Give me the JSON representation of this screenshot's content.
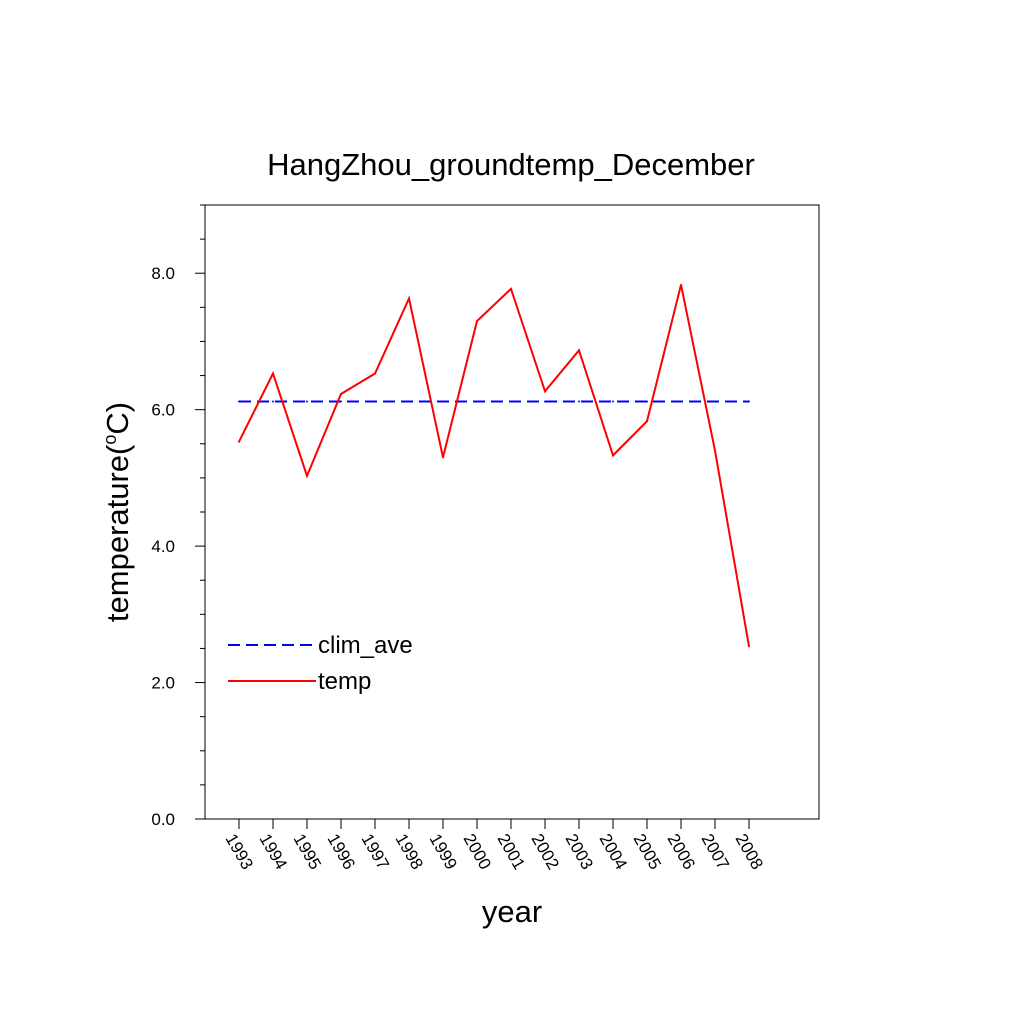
{
  "chart_data": {
    "type": "line",
    "title": "HangZhou_groundtemp_December",
    "xlabel": "year",
    "ylabel": "temperature(",
    "ylabel_sup": "o",
    "ylabel_tail": "C)",
    "x": [
      "1993",
      "1994",
      "1995",
      "1996",
      "1997",
      "1998",
      "1999",
      "2000",
      "2001",
      "2002",
      "2003",
      "2004",
      "2005",
      "2006",
      "2007",
      "2008"
    ],
    "ylim": [
      0,
      9
    ],
    "yticks": [
      "0.0",
      "2.0",
      "4.0",
      "6.0",
      "8.0"
    ],
    "grid": false,
    "legend_position": "lower-left",
    "series": [
      {
        "name": "clim_ave",
        "style": "dashed",
        "color": "#0000ff",
        "values": [
          6.12,
          6.12,
          6.12,
          6.12,
          6.12,
          6.12,
          6.12,
          6.12,
          6.12,
          6.12,
          6.12,
          6.12,
          6.12,
          6.12,
          6.12,
          6.12
        ]
      },
      {
        "name": "temp",
        "style": "solid",
        "color": "#ff0000",
        "values": [
          5.53,
          6.53,
          5.03,
          6.23,
          6.53,
          7.63,
          5.3,
          7.3,
          7.77,
          6.27,
          6.87,
          5.33,
          5.83,
          7.83,
          5.4,
          2.53
        ]
      }
    ]
  }
}
